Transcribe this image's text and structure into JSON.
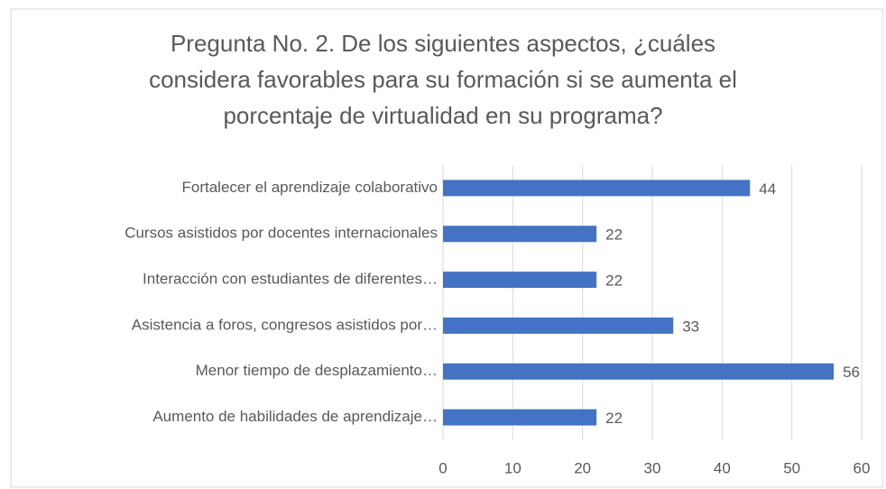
{
  "chart_data": {
    "type": "bar",
    "orientation": "horizontal",
    "title": [
      "Pregunta No. 2. De los siguientes aspectos, ¿cuáles",
      "considera favorables para su formación si se aumenta el",
      "porcentaje de virtualidad en su programa?"
    ],
    "categories": [
      "Fortalecer el aprendizaje colaborativo",
      "Cursos asistidos por docentes internacionales",
      "Interacción con estudiantes de diferentes…",
      "Asistencia a foros, congresos asistidos por…",
      "Menor tiempo de desplazamiento…",
      "Aumento de habilidades de aprendizaje…"
    ],
    "values": [
      44,
      22,
      22,
      33,
      56,
      22
    ],
    "color": "#4472c4",
    "xlim": [
      0,
      60
    ],
    "xticks": [
      0,
      10,
      20,
      30,
      40,
      50,
      60
    ],
    "grid": true
  }
}
